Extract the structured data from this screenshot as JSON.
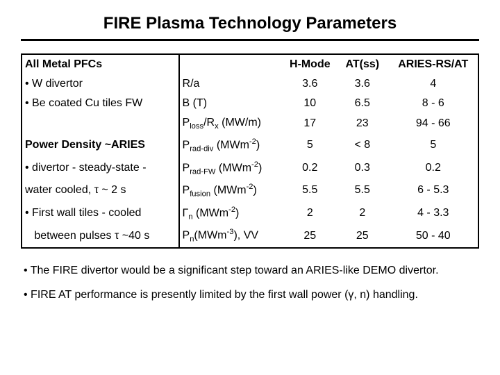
{
  "title": "FIRE Plasma Technology Parameters",
  "table": {
    "header": {
      "left": "All Metal PFCs",
      "col1": "H-Mode",
      "col2": "AT(ss)",
      "col3": "ARIES-RS/AT"
    },
    "rows": [
      {
        "left": "•  W divertor",
        "param_html": "R/a",
        "v1": "3.6",
        "v2": "3.6",
        "v3": "4"
      },
      {
        "left": "•  Be coated Cu tiles FW",
        "param_html": "B (T)",
        "v1": "10",
        "v2": "6.5",
        "v3": "8 - 6"
      },
      {
        "left": "",
        "param_html": "P<span class=\"sub\">loss</span>/R<span class=\"sub\">x</span> (MW/m)",
        "v1": "17",
        "v2": "23",
        "v3": "94 - 66"
      },
      {
        "left_bold": true,
        "left": "Power Density ~ARIES",
        "param_html": "P<span class=\"sub\">rad-div</span> (MWm<span class=\"sup\">-2</span>)",
        "v1": "5",
        "v2": "< 8",
        "v3": "5"
      },
      {
        "left": "• divertor - steady-state -",
        "param_html": "P<span class=\"sub\">rad-FW</span> (MWm<span class=\"sup\">-2</span>)",
        "v1": "0.2",
        "v2": "0.3",
        "v3": "0.2"
      },
      {
        "left": "water cooled, τ ~ 2 s",
        "param_html": "P<span class=\"sub\">fusion</span> (MWm<span class=\"sup\">-2</span>)",
        "v1": "5.5",
        "v2": "5.5",
        "v3": "6 - 5.3"
      },
      {
        "left": "• First wall tiles - cooled",
        "param_html": "Γ<span class=\"sub\">n</span> (MWm<span class=\"sup\">-2</span>)",
        "v1": "2",
        "v2": "2",
        "v3": "4 - 3.3"
      },
      {
        "left": "   between pulses τ ~40 s",
        "param_html": "P<span class=\"sub\">n</span>(MWm<span class=\"sup\">-3</span>), VV",
        "v1": "25",
        "v2": "25",
        "v3": "50 - 40"
      }
    ]
  },
  "notes": [
    "•  The FIRE divertor would be a significant step toward an ARIES-like DEMO divertor.",
    "•  FIRE AT performance is presently limited by the first wall power (γ, n) handling."
  ]
}
